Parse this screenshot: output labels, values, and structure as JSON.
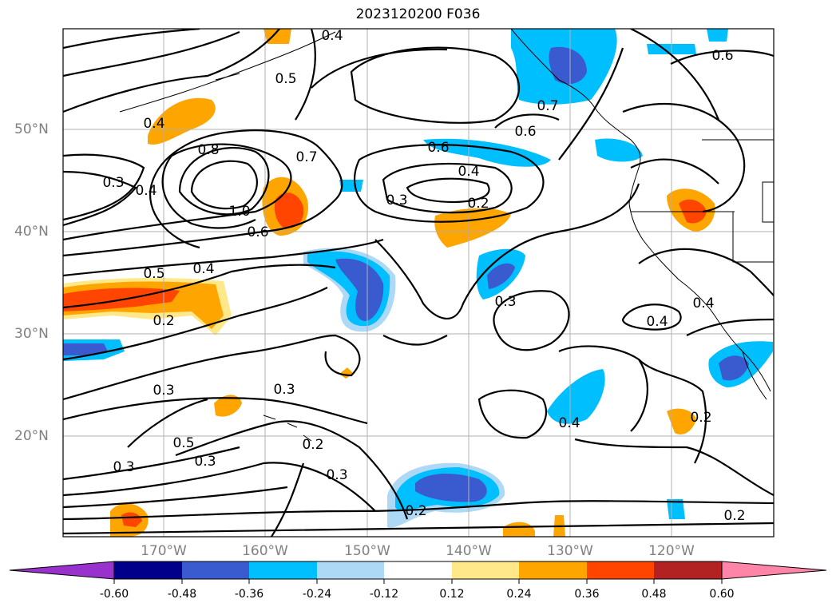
{
  "title": "2023120200 F036",
  "lat_labels": [
    "50°N",
    "40°N",
    "30°N",
    "20°N"
  ],
  "lon_labels": [
    "170°W",
    "160°W",
    "150°W",
    "140°W",
    "130°W",
    "120°W"
  ],
  "contour_labels": [
    "0.3",
    "0.4",
    "0.5",
    "0.4",
    "0.8",
    "0.7",
    "0.6",
    "0.4",
    "0.3",
    "0.2",
    "1.0",
    "0.6",
    "0.5",
    "0.4",
    "0.2",
    "0.3",
    "0.4",
    "0.4",
    "0.3",
    "0.5",
    "0.3",
    "0.3",
    "0.2",
    "0.2",
    "0.3",
    "0.4",
    "0.2",
    "0.2",
    "0.6",
    "0.6",
    "0.7",
    "0.4",
    "0.3"
  ],
  "colorbar": {
    "tick_labels": [
      "-0.60",
      "-0.48",
      "-0.36",
      "-0.24",
      "-0.12",
      "0.12",
      "0.24",
      "0.36",
      "0.48",
      "0.60"
    ],
    "colors": [
      "#9932cc",
      "#00008b",
      "#3a5bd0",
      "#00bfff",
      "#add8f6",
      "#ffffff",
      "#ffe88a",
      "#ffa500",
      "#ff4500",
      "#b22222",
      "#ff85a8"
    ]
  }
}
